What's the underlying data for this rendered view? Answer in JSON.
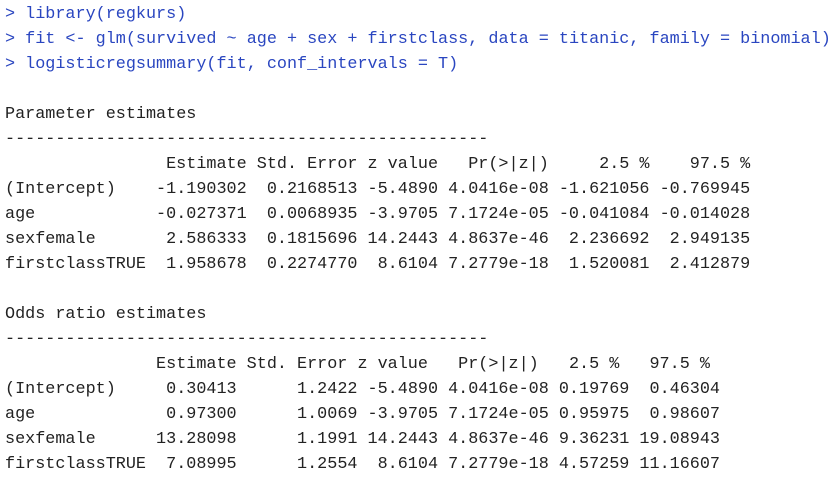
{
  "console": {
    "commands": [
      "> library(regkurs)",
      "> fit <- glm(survived ~ age + sex + firstclass, data = titanic, family = binomial)",
      "> logisticregsummary(fit, conf_intervals = T)"
    ],
    "sections": [
      {
        "title": "Parameter estimates",
        "separator": "------------------------------------------------",
        "table": {
          "header": [
            "Estimate",
            "Std. Error",
            "z value",
            "Pr(>|z|)",
            "2.5 %",
            "97.5 %"
          ],
          "rows": [
            {
              "label": "(Intercept)",
              "cells": [
                "-1.190302",
                "0.2168513",
                "-5.4890",
                "4.0416e-08",
                "-1.621056",
                "-0.769945"
              ]
            },
            {
              "label": "age",
              "cells": [
                "-0.027371",
                "0.0068935",
                "-3.9705",
                "7.1724e-05",
                "-0.041084",
                "-0.014028"
              ]
            },
            {
              "label": "sexfemale",
              "cells": [
                "2.586333",
                "0.1815696",
                "14.2443",
                "4.8637e-46",
                "2.236692",
                "2.949135"
              ]
            },
            {
              "label": "firstclassTRUE",
              "cells": [
                "1.958678",
                "0.2274770",
                "8.6104",
                "7.2779e-18",
                "1.520081",
                "2.412879"
              ]
            }
          ]
        }
      },
      {
        "title": "Odds ratio estimates",
        "separator": "------------------------------------------------",
        "table": {
          "header": [
            "Estimate",
            "Std. Error",
            "z value",
            "Pr(>|z|)",
            "2.5 %",
            "97.5 %"
          ],
          "rows": [
            {
              "label": "(Intercept)",
              "cells": [
                "0.30413",
                "1.2422",
                "-5.4890",
                "4.0416e-08",
                "0.19769",
                "0.46304"
              ]
            },
            {
              "label": "age",
              "cells": [
                "0.97300",
                "1.0069",
                "-3.9705",
                "7.1724e-05",
                "0.95975",
                "0.98607"
              ]
            },
            {
              "label": "sexfemale",
              "cells": [
                "13.28098",
                "1.1991",
                "14.2443",
                "4.8637e-46",
                "9.36231",
                "19.08943"
              ]
            },
            {
              "label": "firstclassTRUE",
              "cells": [
                "7.08995",
                "1.2554",
                "8.6104",
                "7.2779e-18",
                "4.57259",
                "11.16607"
              ]
            }
          ]
        }
      }
    ]
  }
}
